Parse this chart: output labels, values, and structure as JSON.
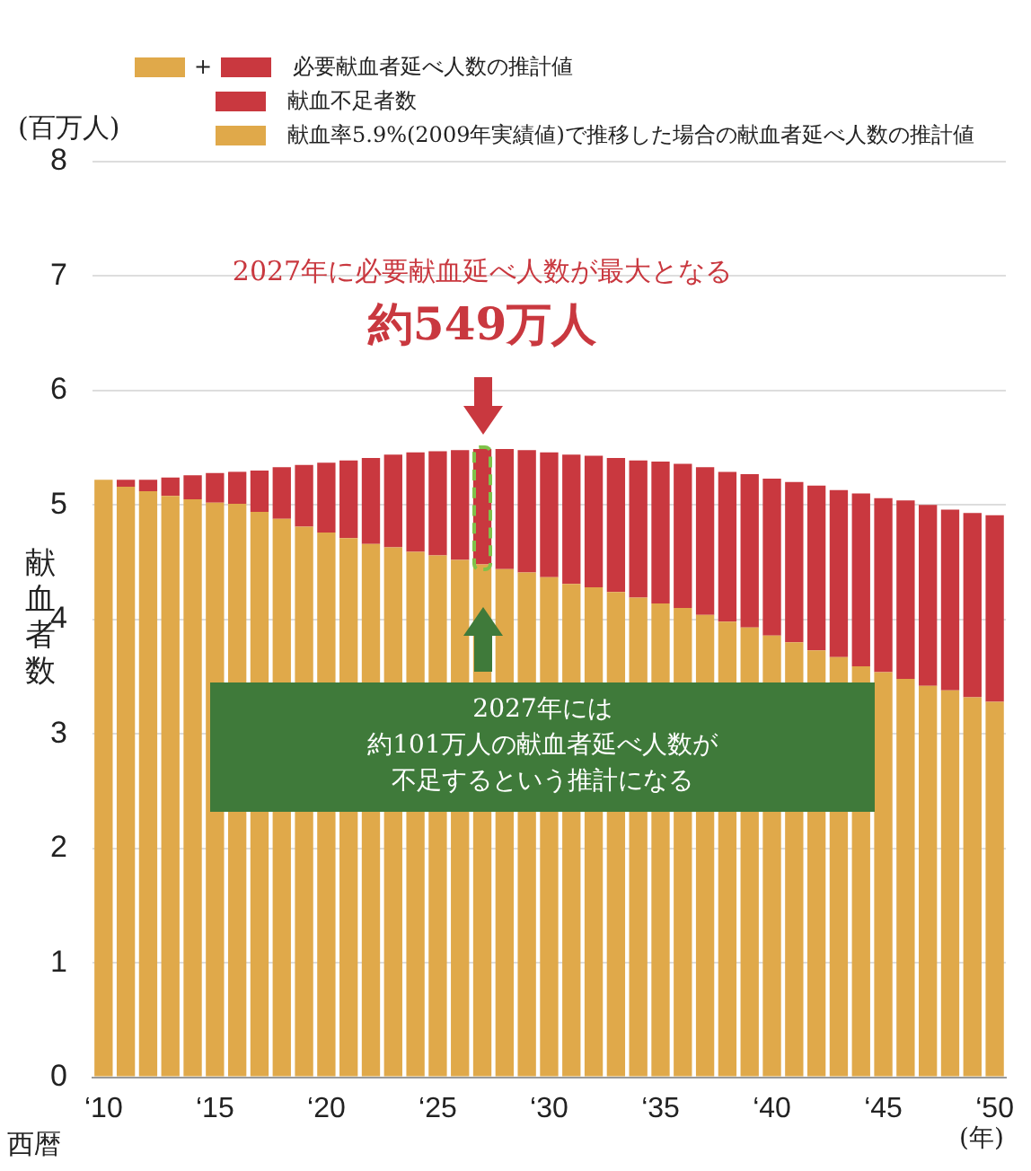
{
  "chart_data": {
    "type": "bar",
    "stacked": true,
    "categories": [
      "‘10",
      null,
      null,
      null,
      null,
      "‘15",
      null,
      null,
      null,
      null,
      "‘20",
      null,
      null,
      null,
      null,
      "‘25",
      null,
      null,
      null,
      null,
      "‘30",
      null,
      null,
      null,
      null,
      "‘35",
      null,
      null,
      null,
      null,
      "‘40",
      null,
      null,
      null,
      null,
      "‘45",
      null,
      null,
      null,
      null,
      "‘50"
    ],
    "series": [
      {
        "name": "献血率5.9%(2009年実績値)で推移した場合の献血者延べ人数の推計値",
        "color": "#e0a94a",
        "values": [
          5.22,
          5.16,
          5.12,
          5.08,
          5.05,
          5.02,
          5.01,
          4.94,
          4.88,
          4.81,
          4.76,
          4.71,
          4.66,
          4.63,
          4.59,
          4.56,
          4.52,
          4.48,
          4.44,
          4.41,
          4.37,
          4.31,
          4.28,
          4.24,
          4.19,
          4.14,
          4.1,
          4.04,
          3.98,
          3.93,
          3.86,
          3.8,
          3.73,
          3.67,
          3.59,
          3.54,
          3.48,
          3.42,
          3.38,
          3.32,
          3.28
        ]
      },
      {
        "name": "献血不足者数",
        "color": "#c9383f",
        "values": [
          0,
          0.06,
          0.1,
          0.16,
          0.21,
          0.26,
          0.28,
          0.36,
          0.45,
          0.54,
          0.61,
          0.68,
          0.75,
          0.81,
          0.87,
          0.91,
          0.96,
          1.01,
          1.05,
          1.07,
          1.09,
          1.13,
          1.15,
          1.17,
          1.2,
          1.24,
          1.26,
          1.29,
          1.31,
          1.34,
          1.37,
          1.4,
          1.44,
          1.46,
          1.51,
          1.52,
          1.56,
          1.58,
          1.58,
          1.61,
          1.63
        ]
      }
    ],
    "ylim": [
      0,
      8
    ],
    "yticks": [
      0,
      1,
      2,
      3,
      4,
      5,
      6,
      7,
      8
    ],
    "grid": "y",
    "legend": "top",
    "xlabel": "(年)",
    "ylabel": "献血者数",
    "annotations": [
      "(百万人)",
      "必要献血者延べ人数の推計値",
      "2027年に必要献血延べ人数が最大となる",
      "約549万人",
      "2027年には",
      "西暦",
      "約101万人の献血者延べ人数が",
      "不足するという推計になる",
      "+"
    ]
  }
}
